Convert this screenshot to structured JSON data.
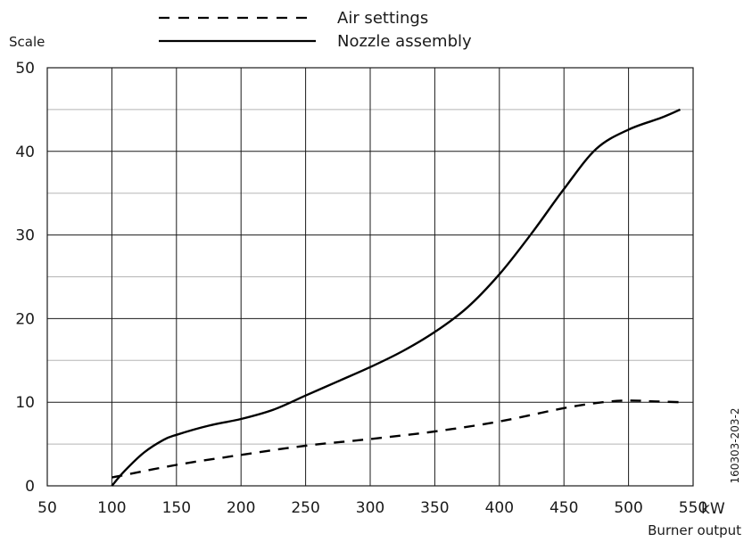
{
  "chart_data": {
    "type": "line",
    "title": "",
    "xlabel": "Burner output",
    "x_unit": "kW",
    "ylabel": "Scale",
    "xlim": [
      50,
      550
    ],
    "ylim": [
      0,
      50
    ],
    "x_ticks": [
      50,
      100,
      150,
      200,
      250,
      300,
      350,
      400,
      450,
      500,
      550
    ],
    "y_ticks": [
      0,
      10,
      20,
      30,
      40,
      50
    ],
    "grid": true,
    "legend_position": "top-center",
    "series": [
      {
        "name": "Air settings",
        "style": "dashed",
        "color": "#000000",
        "x": [
          100,
          150,
          200,
          250,
          300,
          350,
          400,
          450,
          480,
          500,
          520,
          540
        ],
        "y": [
          1.0,
          2.5,
          3.7,
          4.8,
          5.6,
          6.5,
          7.7,
          9.3,
          10.0,
          10.2,
          10.1,
          10.0
        ]
      },
      {
        "name": "Nozzle assembly",
        "style": "solid",
        "color": "#000000",
        "x": [
          100,
          110,
          125,
          140,
          150,
          175,
          200,
          225,
          250,
          275,
          300,
          325,
          350,
          375,
          400,
          425,
          450,
          475,
          500,
          525,
          540
        ],
        "y": [
          0.0,
          1.8,
          4.0,
          5.5,
          6.1,
          7.2,
          8.0,
          9.1,
          10.8,
          12.5,
          14.2,
          16.1,
          18.4,
          21.3,
          25.3,
          30.2,
          35.5,
          40.3,
          42.6,
          44.0,
          45.0
        ]
      }
    ],
    "figure_id": "160303-203-2"
  }
}
